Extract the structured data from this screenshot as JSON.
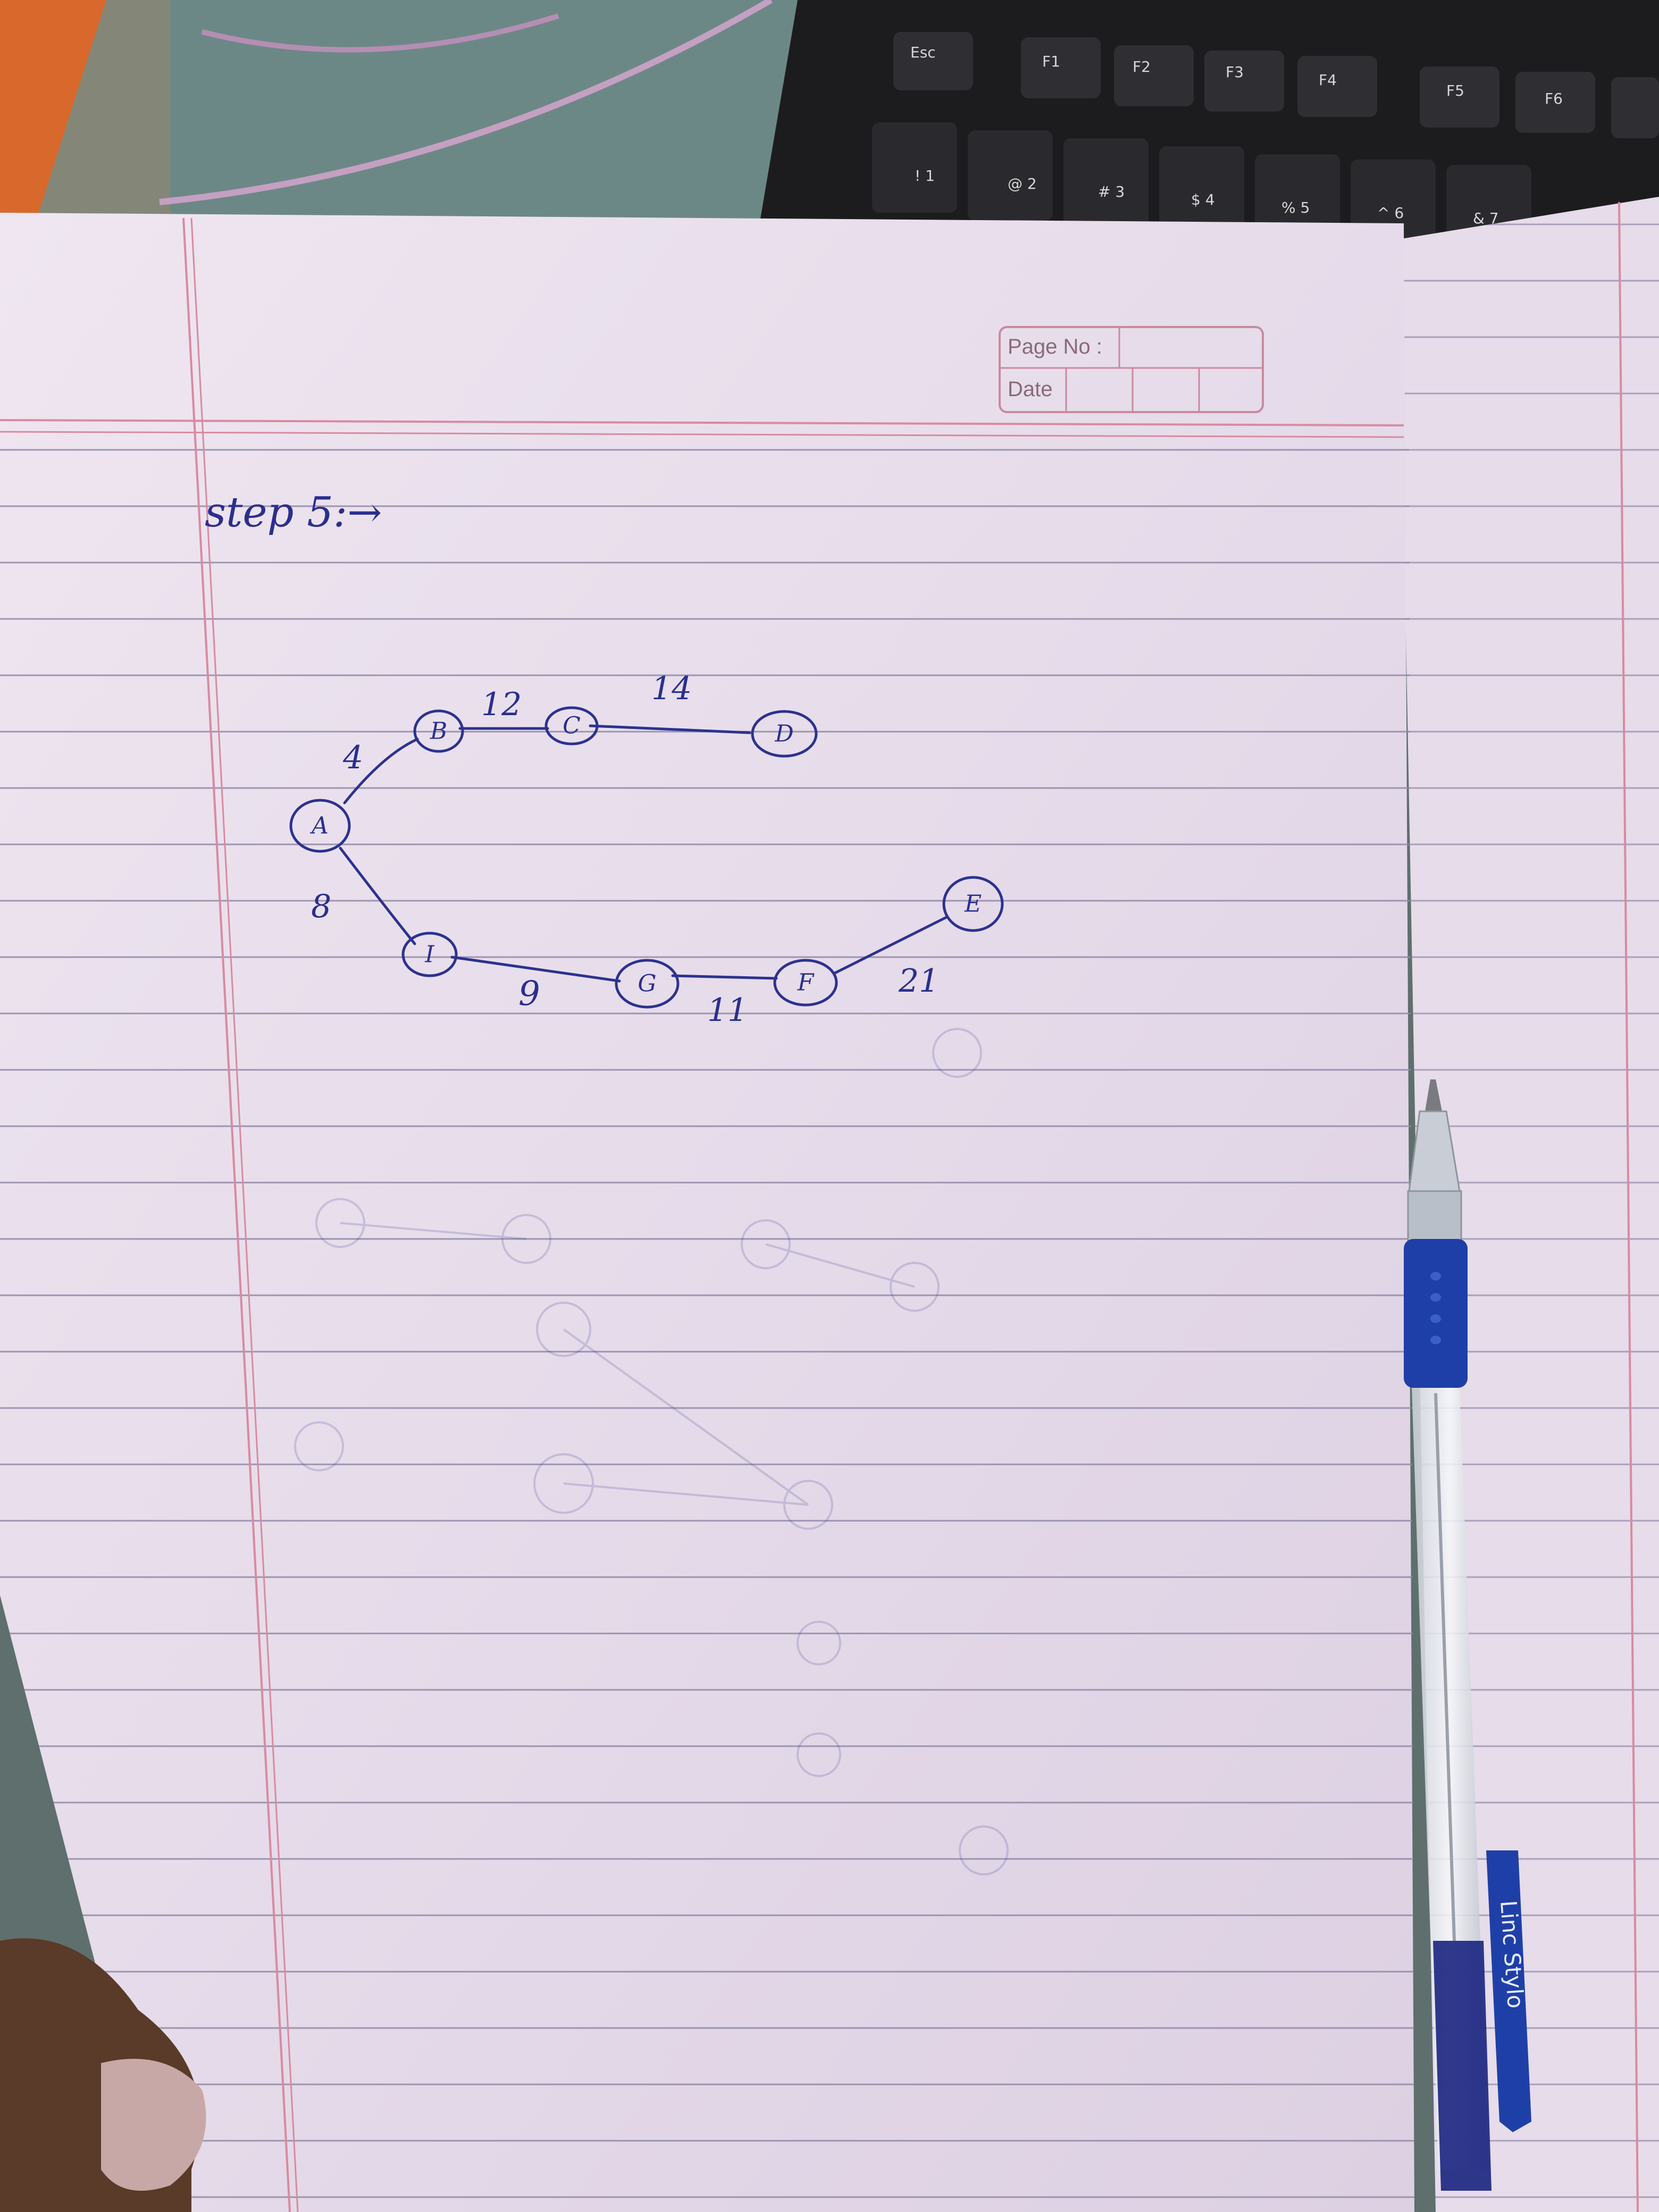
{
  "keyboard": {
    "keys": [
      "Esc",
      "F1",
      "F2",
      "F3",
      "F4",
      "F5",
      "F6"
    ],
    "number_row": [
      "!\n1",
      "@\n2",
      "#\n3",
      "$\n4",
      "%\n5",
      "^\n6",
      "&\n7"
    ]
  },
  "notebook": {
    "page_box": {
      "page_no_label": "Page No :",
      "date_label": "Date"
    },
    "heading": "step 5:→",
    "graph": {
      "nodes": [
        "A",
        "B",
        "C",
        "D",
        "E",
        "F",
        "G",
        "I"
      ],
      "edges": [
        {
          "from": "A",
          "to": "B",
          "weight": "4"
        },
        {
          "from": "B",
          "to": "C",
          "weight": "12"
        },
        {
          "from": "C",
          "to": "D",
          "weight": "14"
        },
        {
          "from": "A",
          "to": "I",
          "weight": "8"
        },
        {
          "from": "I",
          "to": "G",
          "weight": "9"
        },
        {
          "from": "G",
          "to": "F",
          "weight": "11"
        },
        {
          "from": "F",
          "to": "E",
          "weight": "21"
        }
      ]
    }
  },
  "pen": {
    "brand_text": "Linc Stylo"
  },
  "colors": {
    "ink": "#2c3290",
    "paper": "#ece3ee",
    "rule_line": "#9a8aa8",
    "margin_line": "#d98aa0",
    "pen_grip": "#1f3fa8"
  }
}
